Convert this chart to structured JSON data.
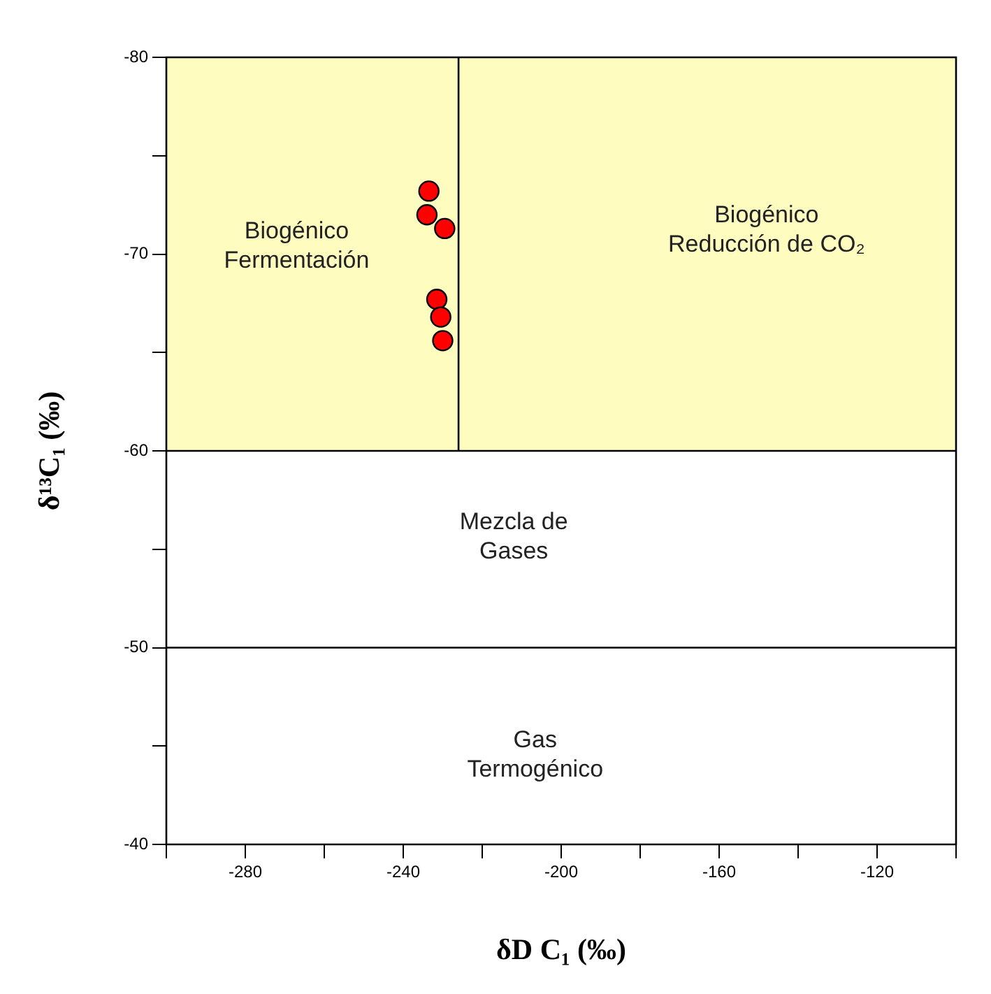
{
  "chart_data": {
    "type": "scatter",
    "xlabel": "δD C₁ (‰)",
    "ylabel": "δ¹³C₁ (‰)",
    "xlim": [
      -300,
      -100
    ],
    "xticks": [
      {
        "value": -300,
        "label": null
      },
      -280,
      {
        "value": -260,
        "label": null
      },
      -240,
      {
        "value": -220,
        "label": null
      },
      -200,
      {
        "value": -180,
        "label": null
      },
      -160,
      {
        "value": -140,
        "label": null
      },
      -120,
      {
        "value": -100,
        "label": null
      }
    ],
    "ylim": [
      -40,
      -80
    ],
    "yticks": [
      -80,
      {
        "value": -75,
        "label": null
      },
      -70,
      {
        "value": -65,
        "label": null
      },
      -60,
      {
        "value": -55,
        "label": null
      },
      -50,
      {
        "value": -45,
        "label": null
      },
      -40
    ],
    "series": [
      {
        "color": "#ff0000",
        "x": [
          -233.5,
          -234,
          -229.5,
          -231.5,
          -230.5,
          -230
        ],
        "values": [
          -73.2,
          -72,
          -71.3,
          -67.7,
          -66.8,
          -65.6
        ]
      }
    ],
    "marker": "circle",
    "grid": false,
    "legend": false,
    "bands": [
      {
        "axis": "y",
        "from": -80,
        "to": -60,
        "color": "#fffcc0"
      }
    ],
    "ref_lines": [
      {
        "axis": "y",
        "value": -60
      },
      {
        "axis": "y",
        "value": -50
      },
      {
        "axis": "x",
        "value": -226
      }
    ],
    "annotations": [
      "Biogénico\nFermentación",
      "Biogénico\nReducción de CO₂",
      "Mezcla de\nGases",
      "Gas\nTermogénico"
    ]
  }
}
